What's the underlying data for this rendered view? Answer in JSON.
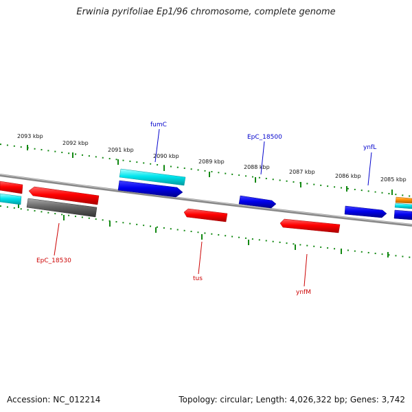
{
  "title": "Erwinia pyrifoliae Ep1/96 chromosome, complete genome",
  "accession": "Accession: NC_012214",
  "topology": "Topology: circular; Length: 4,026,322 bp; Genes: 3,742",
  "ticks_outer": [
    "2093 kbp",
    "2092 kbp",
    "2091 kbp",
    "2090 kbp",
    "2089 kbp",
    "2088 kbp",
    "2087 kbp",
    "2086 kbp",
    "2085 kbp"
  ],
  "labels_top": [
    {
      "name": "fumC",
      "color": "#0000cc"
    },
    {
      "name": "EpC_18500",
      "color": "#0000cc"
    },
    {
      "name": "ynfL",
      "color": "#0000cc"
    }
  ],
  "labels_bottom": [
    {
      "name": "EpC_18530",
      "color": "#cc0000"
    },
    {
      "name": "tus",
      "color": "#cc0000"
    },
    {
      "name": "ynfM",
      "color": "#cc0000"
    }
  ],
  "colors": {
    "red": "#ff0000",
    "blue": "#0000ee",
    "cyan": "#00e5ee",
    "gray": "#666666",
    "orange": "#ff8c00",
    "tick": "#118811",
    "backbone": "#888888"
  }
}
